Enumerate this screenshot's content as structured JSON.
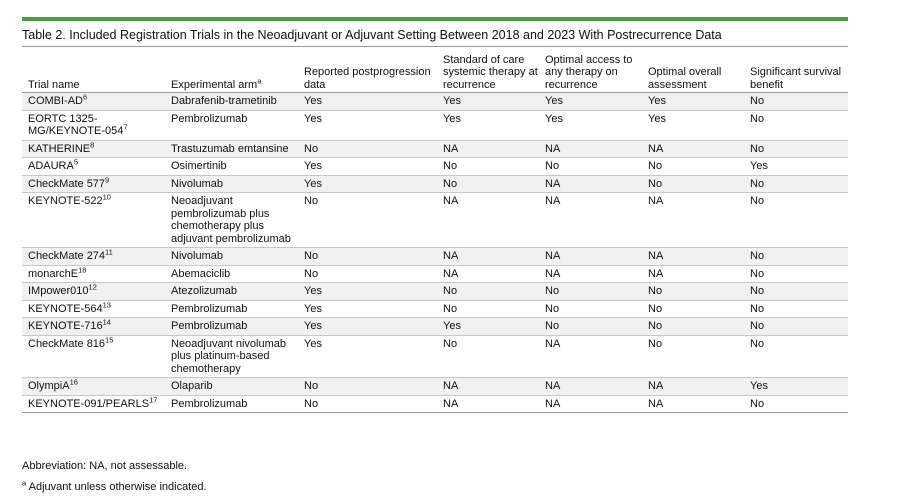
{
  "title": "Table 2. Included Registration Trials in the Neoadjuvant or Adjuvant Setting Between 2018 and 2023 With Postrecurrence Data",
  "columns": [
    {
      "text": "Trial name",
      "sup": ""
    },
    {
      "text": "Experimental arm",
      "sup": "a"
    },
    {
      "text": "Reported postprogression data",
      "sup": ""
    },
    {
      "text": "Standard of care systemic therapy at recurrence",
      "sup": ""
    },
    {
      "text": "Optimal access to any therapy on recurrence",
      "sup": ""
    },
    {
      "text": "Optimal overall assessment",
      "sup": ""
    },
    {
      "text": "Significant survival benefit",
      "sup": ""
    }
  ],
  "rows": [
    {
      "trial": "COMBI-AD",
      "ref": "6",
      "arm": "Dabrafenib-trametinib",
      "reported": "Yes",
      "soc": "Yes",
      "access": "Yes",
      "overall": "Yes",
      "survival": "No"
    },
    {
      "trial": "EORTC 1325-MG/KEYNOTE-054",
      "ref": "7",
      "arm": "Pembrolizumab",
      "reported": "Yes",
      "soc": "Yes",
      "access": "Yes",
      "overall": "Yes",
      "survival": "No"
    },
    {
      "trial": "KATHERINE",
      "ref": "8",
      "arm": "Trastuzumab emtansine",
      "reported": "No",
      "soc": "NA",
      "access": "NA",
      "overall": "NA",
      "survival": "No"
    },
    {
      "trial": "ADAURA",
      "ref": "5",
      "arm": "Osimertinib",
      "reported": "Yes",
      "soc": "No",
      "access": "No",
      "overall": "No",
      "survival": "Yes"
    },
    {
      "trial": "CheckMate 577",
      "ref": "9",
      "arm": "Nivolumab",
      "reported": "Yes",
      "soc": "No",
      "access": "NA",
      "overall": "No",
      "survival": "No"
    },
    {
      "trial": "KEYNOTE-522",
      "ref": "10",
      "arm": "Neoadjuvant pembrolizumab plus chemotherapy plus adjuvant pembrolizumab",
      "reported": "No",
      "soc": "NA",
      "access": "NA",
      "overall": "NA",
      "survival": "No"
    },
    {
      "trial": "CheckMate 274",
      "ref": "11",
      "arm": "Nivolumab",
      "reported": "No",
      "soc": "NA",
      "access": "NA",
      "overall": "NA",
      "survival": "No"
    },
    {
      "trial": "monarchE",
      "ref": "18",
      "arm": "Abemaciclib",
      "reported": "No",
      "soc": "NA",
      "access": "NA",
      "overall": "NA",
      "survival": "No"
    },
    {
      "trial": "IMpower010",
      "ref": "12",
      "arm": "Atezolizumab",
      "reported": "Yes",
      "soc": "No",
      "access": "No",
      "overall": "No",
      "survival": "No"
    },
    {
      "trial": "KEYNOTE-564",
      "ref": "13",
      "arm": "Pembrolizumab",
      "reported": "Yes",
      "soc": "No",
      "access": "No",
      "overall": "No",
      "survival": "No"
    },
    {
      "trial": "KEYNOTE-716",
      "ref": "14",
      "arm": "Pembrolizumab",
      "reported": "Yes",
      "soc": "Yes",
      "access": "No",
      "overall": "No",
      "survival": "No"
    },
    {
      "trial": "CheckMate 816",
      "ref": "15",
      "arm": "Neoadjuvant nivolumab plus platinum-based chemotherapy",
      "reported": "Yes",
      "soc": "No",
      "access": "NA",
      "overall": "No",
      "survival": "No"
    },
    {
      "trial": "OlympiA",
      "ref": "16",
      "arm": "Olaparib",
      "reported": "No",
      "soc": "NA",
      "access": "NA",
      "overall": "NA",
      "survival": "Yes"
    },
    {
      "trial": "KEYNOTE-091/PEARLS",
      "ref": "17",
      "arm": "Pembrolizumab",
      "reported": "No",
      "soc": "NA",
      "access": "NA",
      "overall": "NA",
      "survival": "No"
    }
  ],
  "footnotes": {
    "abbrev": "Abbreviation: NA, not assessable.",
    "a_mark": "a",
    "a_text": " Adjuvant unless otherwise indicated."
  }
}
